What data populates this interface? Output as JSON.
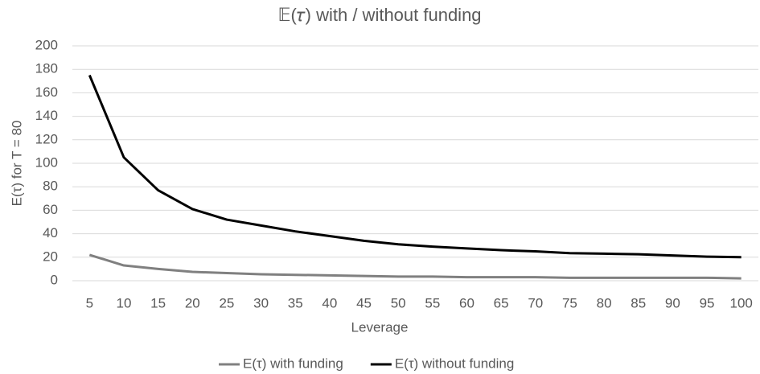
{
  "chart_data": {
    "type": "line",
    "title": "𝔼(𝜏) with / without funding",
    "x_label": "Leverage",
    "y_label": "E(τ) for T = 80",
    "categories": [
      "5",
      "10",
      "15",
      "20",
      "25",
      "30",
      "35",
      "40",
      "45",
      "50",
      "55",
      "60",
      "65",
      "70",
      "75",
      "80",
      "85",
      "90",
      "95",
      "100"
    ],
    "series": [
      {
        "name": "E(τ) with funding",
        "color": "#808080",
        "values": [
          22,
          13,
          10,
          7.5,
          6.5,
          5.5,
          5,
          4.5,
          4,
          3.5,
          3.5,
          3,
          3,
          3,
          2.5,
          2.5,
          2.5,
          2.5,
          2.5,
          2
        ]
      },
      {
        "name": "E(τ) without funding",
        "color": "#000000",
        "values": [
          175,
          105,
          77,
          61,
          52,
          47,
          42,
          38,
          34,
          31,
          29,
          27.5,
          26,
          25,
          23.5,
          23,
          22.5,
          21.5,
          20.5,
          20
        ]
      }
    ],
    "ylim": [
      0,
      200
    ],
    "yticks": [
      0,
      20,
      40,
      60,
      80,
      100,
      120,
      140,
      160,
      180,
      200
    ],
    "grid": true,
    "legend": "bottom"
  }
}
